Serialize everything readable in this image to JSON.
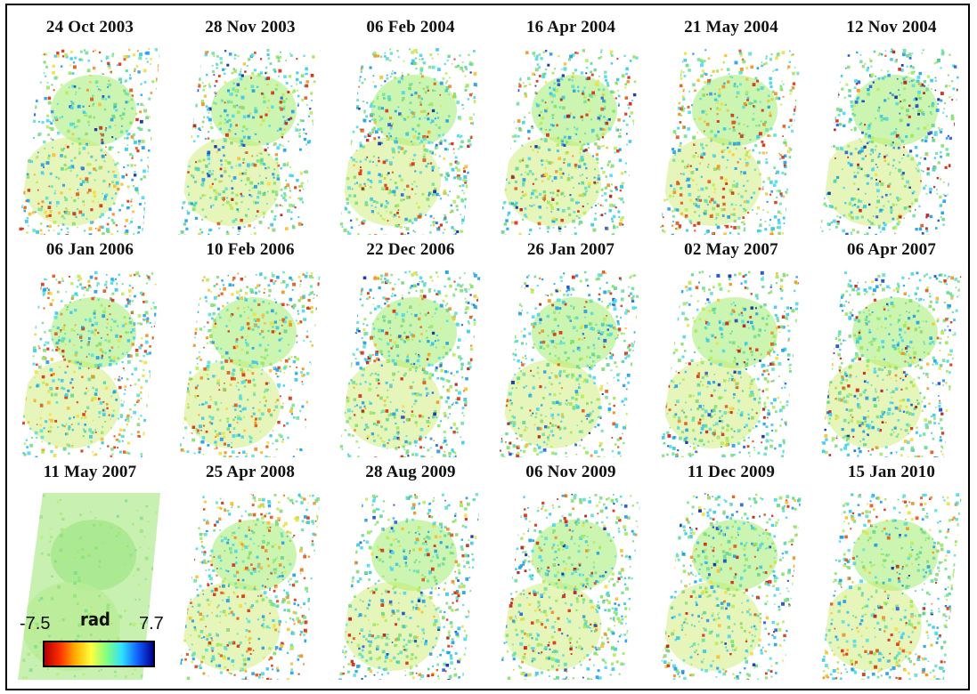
{
  "panels": [
    {
      "date": "24 Oct 2003",
      "seed": 11,
      "style": "warm-corners"
    },
    {
      "date": "28 Nov 2003",
      "seed": 23,
      "style": "mixed"
    },
    {
      "date": "06 Feb 2004",
      "seed": 37,
      "style": "greenish"
    },
    {
      "date": "16 Apr 2004",
      "seed": 41,
      "style": "mixed"
    },
    {
      "date": "21 May 2004",
      "seed": 53,
      "style": "warm"
    },
    {
      "date": "12 Nov 2004",
      "seed": 67,
      "style": "contrast"
    },
    {
      "date": "06 Jan 2006",
      "seed": 71,
      "style": "warm"
    },
    {
      "date": "10 Feb 2006",
      "seed": 83,
      "style": "warm"
    },
    {
      "date": "22 Dec 2006",
      "seed": 97,
      "style": "greenish"
    },
    {
      "date": "26 Jan 2007",
      "seed": 103,
      "style": "mixed"
    },
    {
      "date": "02 May 2007",
      "seed": 113,
      "style": "greenish"
    },
    {
      "date": "06 Apr 2007",
      "seed": 127,
      "style": "greenish"
    },
    {
      "date": "11 May 2007",
      "seed": 131,
      "style": "flat"
    },
    {
      "date": "25 Apr 2008",
      "seed": 139,
      "style": "warm"
    },
    {
      "date": "28 Aug 2009",
      "seed": 149,
      "style": "mixed"
    },
    {
      "date": "06 Nov 2009",
      "seed": 157,
      "style": "mixed"
    },
    {
      "date": "11 Dec 2009",
      "seed": 163,
      "style": "mixed"
    },
    {
      "date": "15 Jan 2010",
      "seed": 173,
      "style": "warm-corners"
    }
  ],
  "colorbar": {
    "min_label": "-7.5",
    "max_label": "7.7",
    "unit": "rad",
    "colors": [
      "#b00000",
      "#ff3000",
      "#ffb000",
      "#ffff40",
      "#80ff80",
      "#30e0ff",
      "#1060ff",
      "#000090"
    ]
  }
}
